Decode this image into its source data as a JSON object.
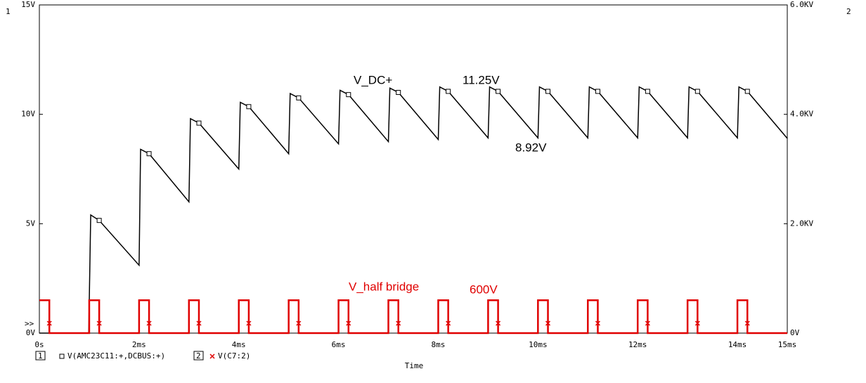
{
  "chart_data": {
    "type": "line",
    "xlabel": "Time",
    "axis_numbers": [
      "1",
      "2"
    ],
    "legend_prefix": ">>",
    "annotations": [
      "V_DC+",
      "11.25V",
      "8.92V",
      "V_half bridge",
      "600V"
    ],
    "xlim": [
      0,
      15
    ],
    "xticks": [
      {
        "value": 0,
        "label": "0s"
      },
      {
        "value": 2,
        "label": "2ms"
      },
      {
        "value": 4,
        "label": "4ms"
      },
      {
        "value": 6,
        "label": "6ms"
      },
      {
        "value": 8,
        "label": "8ms"
      },
      {
        "value": 10,
        "label": "10ms"
      },
      {
        "value": 12,
        "label": "12ms"
      },
      {
        "value": 14,
        "label": "14ms"
      },
      {
        "value": 15,
        "label": "15ms"
      }
    ],
    "ylim": [
      0,
      15
    ],
    "yticks": [
      {
        "value": 0,
        "label": "0V"
      },
      {
        "value": 5,
        "label": "5V"
      },
      {
        "value": 10,
        "label": "10V"
      },
      {
        "value": 15,
        "label": "15V"
      }
    ],
    "y2lim": [
      0,
      6
    ],
    "y2ticks": [
      {
        "value": 0,
        "label": "0V"
      },
      {
        "value": 2,
        "label": "2.0KV"
      },
      {
        "value": 4,
        "label": "4.0KV"
      },
      {
        "value": 6,
        "label": "6.0KV"
      }
    ],
    "series": [
      {
        "name": "V(AMC23C11:+,DCBUS:+)",
        "color": "#000000",
        "marker": "square",
        "x": [
          0,
          0.99,
          1.03,
          1.2,
          2.0,
          2.03,
          2.2,
          3.0,
          3.03,
          3.2,
          4.0,
          4.03,
          4.2,
          5.0,
          5.03,
          5.2,
          6.0,
          6.03,
          6.2,
          7.0,
          7.03,
          7.2,
          8.0,
          8.03,
          8.2,
          9.0,
          9.03,
          9.2,
          10.0,
          10.03,
          10.2,
          11.0,
          11.03,
          11.2,
          12.0,
          12.03,
          12.2,
          13.0,
          13.03,
          13.2,
          14.0,
          14.03,
          14.2,
          15.0
        ],
        "values": [
          0,
          0,
          5.4,
          5.15,
          3.1,
          8.4,
          8.2,
          6.0,
          9.8,
          9.6,
          7.5,
          10.55,
          10.35,
          8.2,
          10.95,
          10.75,
          8.65,
          11.1,
          10.9,
          8.75,
          11.2,
          11.0,
          8.85,
          11.25,
          11.05,
          8.92,
          11.25,
          11.05,
          8.92,
          11.25,
          11.05,
          8.92,
          11.25,
          11.05,
          8.92,
          11.25,
          11.05,
          8.92,
          11.25,
          11.05,
          8.92,
          11.25,
          11.05,
          8.9
        ]
      },
      {
        "name": "V(C7:2)",
        "color": "#e00000",
        "marker": "cross",
        "axis": "y2",
        "x": [
          0,
          0.2,
          0.2,
          1,
          1,
          1.2,
          1.2,
          2,
          2,
          2.2,
          2.2,
          3,
          3,
          3.2,
          3.2,
          4,
          4,
          4.2,
          4.2,
          5,
          5,
          5.2,
          5.2,
          6,
          6,
          6.2,
          6.2,
          7,
          7,
          7.2,
          7.2,
          8,
          8,
          8.2,
          8.2,
          9,
          9,
          9.2,
          9.2,
          10,
          10,
          10.2,
          10.2,
          11,
          11,
          11.2,
          11.2,
          12,
          12,
          12.2,
          12.2,
          13,
          13,
          13.2,
          13.2,
          14,
          14,
          14.2,
          14.2,
          15
        ],
        "values": [
          0.6,
          0.6,
          0,
          0,
          0.6,
          0.6,
          0,
          0,
          0.6,
          0.6,
          0,
          0,
          0.6,
          0.6,
          0,
          0,
          0.6,
          0.6,
          0,
          0,
          0.6,
          0.6,
          0,
          0,
          0.6,
          0.6,
          0,
          0,
          0.6,
          0.6,
          0,
          0,
          0.6,
          0.6,
          0,
          0,
          0.6,
          0.6,
          0,
          0,
          0.6,
          0.6,
          0,
          0,
          0.6,
          0.6,
          0,
          0,
          0.6,
          0.6,
          0,
          0,
          0.6,
          0.6,
          0,
          0,
          0.6,
          0.6,
          0,
          0
        ]
      }
    ]
  }
}
